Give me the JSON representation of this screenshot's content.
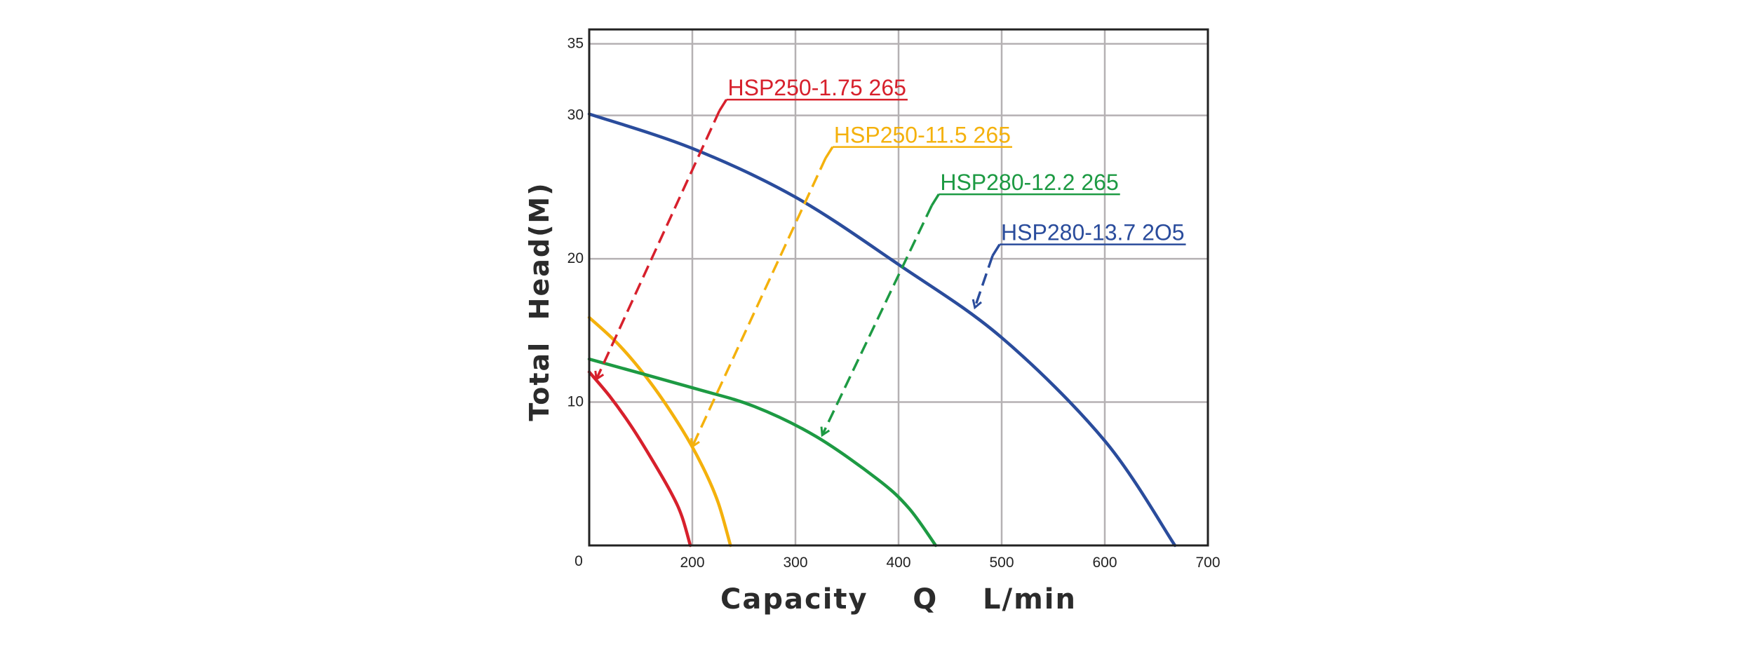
{
  "chart_data": {
    "type": "line",
    "xlabel": "Capacity    Q    L/min",
    "ylabel": "Total  Head(M)",
    "x_origin_label": "0",
    "xlim": [
      100,
      700
    ],
    "ylim": [
      0,
      36
    ],
    "x_ticks": [
      200,
      300,
      400,
      500,
      600,
      700
    ],
    "x_tick_labels": [
      "200",
      "300",
      "400",
      "500",
      "600",
      "700"
    ],
    "y_ticks": [
      10,
      20,
      30,
      35
    ],
    "y_tick_labels": [
      "10",
      "20",
      "30",
      "35"
    ],
    "grid": true,
    "legend": "callout labels with dashed leader arrows",
    "series": [
      {
        "name": "HSP250-1.75 265",
        "color": "#d7202c",
        "x": [
          100,
          120,
          140,
          160,
          180,
          190,
          198
        ],
        "y": [
          12.1,
          10.4,
          8.4,
          6.1,
          3.6,
          2.0,
          0
        ],
        "callout": {
          "label_x": 233,
          "label_y": 31.1,
          "arrow_x": 107,
          "arrow_y": 11.6
        }
      },
      {
        "name": "HSP250-11.5 265",
        "color": "#f4b10c",
        "x": [
          100,
          130,
          160,
          190,
          210,
          225,
          237
        ],
        "y": [
          15.9,
          13.9,
          11.3,
          8.1,
          5.5,
          3.0,
          0
        ],
        "callout": {
          "label_x": 336,
          "label_y": 27.8,
          "arrow_x": 200,
          "arrow_y": 6.9
        }
      },
      {
        "name": "HSP280-12.2 265",
        "color": "#1d9a43",
        "x": [
          100,
          200,
          260,
          320,
          380,
          410,
          436
        ],
        "y": [
          13.0,
          11.0,
          9.7,
          7.6,
          4.6,
          2.6,
          0
        ],
        "callout": {
          "label_x": 439,
          "label_y": 24.5,
          "arrow_x": 326,
          "arrow_y": 7.7
        }
      },
      {
        "name": "HSP280-13.7 2O5",
        "color": "#2a4c9c",
        "x": [
          100,
          200,
          300,
          400,
          500,
          600,
          668
        ],
        "y": [
          30.1,
          27.7,
          24.3,
          19.6,
          14.5,
          7.3,
          0
        ],
        "callout": {
          "label_x": 498,
          "label_y": 21.0,
          "arrow_x": 474,
          "arrow_y": 16.6
        }
      }
    ]
  }
}
